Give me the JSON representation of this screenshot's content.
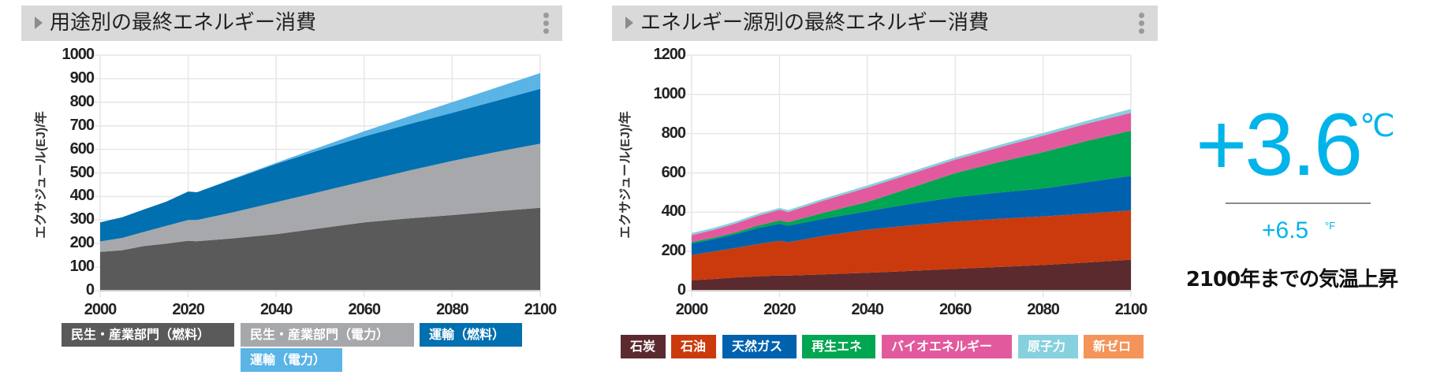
{
  "left_panel": {
    "title": "用途別の最終エネルギー消費",
    "ylabel": "エクサジュール(EJ)/年",
    "yticks": [
      "0",
      "100",
      "200",
      "300",
      "400",
      "500",
      "600",
      "700",
      "800",
      "900",
      "1000"
    ],
    "xticks": [
      "2000",
      "2020",
      "2040",
      "2060",
      "2080",
      "2100"
    ],
    "legend": [
      {
        "label": "民生・産業部門（燃料）",
        "color": "#5a5a5a"
      },
      {
        "label": "民生・産業部門（電力）",
        "color": "#a7a8ab"
      },
      {
        "label": "運輸（燃料）",
        "color": "#0070b0"
      },
      {
        "label": "運輸（電力）",
        "color": "#5ab4e6"
      }
    ]
  },
  "right_panel": {
    "title": "エネルギー源別の最終エネルギー消費",
    "ylabel": "エクサジュール(EJ)/年",
    "yticks": [
      "0",
      "200",
      "400",
      "600",
      "800",
      "1000",
      "1200"
    ],
    "xticks": [
      "2000",
      "2020",
      "2040",
      "2060",
      "2080",
      "2100"
    ],
    "legend": [
      {
        "label": "石炭",
        "color": "#5b2a2e"
      },
      {
        "label": "石油",
        "color": "#cb3a0c"
      },
      {
        "label": "天然ガス",
        "color": "#0062ae"
      },
      {
        "label": "再生エネ",
        "color": "#00a651"
      },
      {
        "label": "バイオエネルギー",
        "color": "#e25a9d"
      },
      {
        "label": "原子力",
        "color": "#87d1de"
      },
      {
        "label": "新ゼロ",
        "color": "#f5945a"
      }
    ]
  },
  "temperature": {
    "celsius_value": "+3.6",
    "celsius_unit": "℃",
    "fahrenheit_value": "+6.5",
    "fahrenheit_unit": "°F",
    "caption": "2100年までの気温上昇",
    "accent_color": "#00b4ea"
  },
  "chart_data": [
    {
      "type": "area",
      "stacked": true,
      "title": "用途別の最終エネルギー消費",
      "xlabel": "",
      "ylabel": "エクサジュール(EJ)/年",
      "ylim": [
        0,
        1000
      ],
      "xlim": [
        2000,
        2100
      ],
      "grid": true,
      "legend_position": "bottom",
      "x": [
        2000,
        2005,
        2010,
        2015,
        2020,
        2022,
        2030,
        2040,
        2050,
        2060,
        2070,
        2080,
        2090,
        2100
      ],
      "series": [
        {
          "name": "民生・産業部門（燃料）",
          "color": "#5a5a5a",
          "values": [
            165,
            172,
            190,
            200,
            212,
            210,
            222,
            240,
            265,
            290,
            307,
            321,
            337,
            352
          ]
        },
        {
          "name": "民生・産業部門（電力）",
          "color": "#a7a8ab",
          "values": [
            44,
            52,
            60,
            75,
            88,
            90,
            110,
            136,
            155,
            175,
            202,
            230,
            252,
            272
          ]
        },
        {
          "name": "運輸（燃料）",
          "color": "#0070b0",
          "values": [
            81,
            88,
            95,
            103,
            121,
            118,
            140,
            162,
            178,
            190,
            197,
            204,
            217,
            233
          ]
        },
        {
          "name": "運輸（電力）",
          "color": "#5ab4e6",
          "values": [
            0,
            0,
            0,
            0,
            0,
            0,
            2,
            5,
            12,
            22,
            33,
            45,
            56,
            67
          ]
        }
      ]
    },
    {
      "type": "area",
      "stacked": true,
      "title": "エネルギー源別の最終エネルギー消費",
      "xlabel": "",
      "ylabel": "エクサジュール(EJ)/年",
      "ylim": [
        0,
        1200
      ],
      "xlim": [
        2000,
        2100
      ],
      "grid": true,
      "legend_position": "bottom",
      "x": [
        2000,
        2005,
        2010,
        2015,
        2020,
        2022,
        2030,
        2040,
        2050,
        2060,
        2070,
        2080,
        2090,
        2100
      ],
      "series": [
        {
          "name": "石炭",
          "color": "#5b2a2e",
          "values": [
            53,
            60,
            68,
            73,
            78,
            77,
            83,
            91,
            101,
            111,
            121,
            131,
            144,
            158
          ]
        },
        {
          "name": "石油",
          "color": "#cb3a0c",
          "values": [
            129,
            140,
            150,
            165,
            176,
            170,
            196,
            220,
            232,
            241,
            245,
            247,
            249,
            251
          ]
        },
        {
          "name": "天然ガス",
          "color": "#0062ae",
          "values": [
            58,
            62,
            70,
            80,
            87,
            84,
            88,
            94,
            110,
            124,
            134,
            143,
            160,
            176
          ]
        },
        {
          "name": "再生エネ",
          "color": "#00a651",
          "values": [
            8,
            8,
            9,
            13,
            17,
            18,
            30,
            47,
            82,
            123,
            155,
            185,
            210,
            230
          ]
        },
        {
          "name": "バイオエネルギー",
          "color": "#e25a9d",
          "values": [
            35,
            40,
            45,
            50,
            54,
            52,
            62,
            73,
            71,
            69,
            75,
            84,
            88,
            91
          ]
        },
        {
          "name": "原子力",
          "color": "#87d1de",
          "values": [
            11,
            10,
            10,
            10,
            10,
            10,
            10,
            11,
            11,
            11,
            12,
            13,
            15,
            20
          ]
        },
        {
          "name": "新ゼロ",
          "color": "#f5945a",
          "values": [
            0,
            0,
            0,
            0,
            0,
            0,
            0,
            0,
            0,
            0,
            0,
            0,
            0,
            0
          ]
        }
      ]
    }
  ]
}
